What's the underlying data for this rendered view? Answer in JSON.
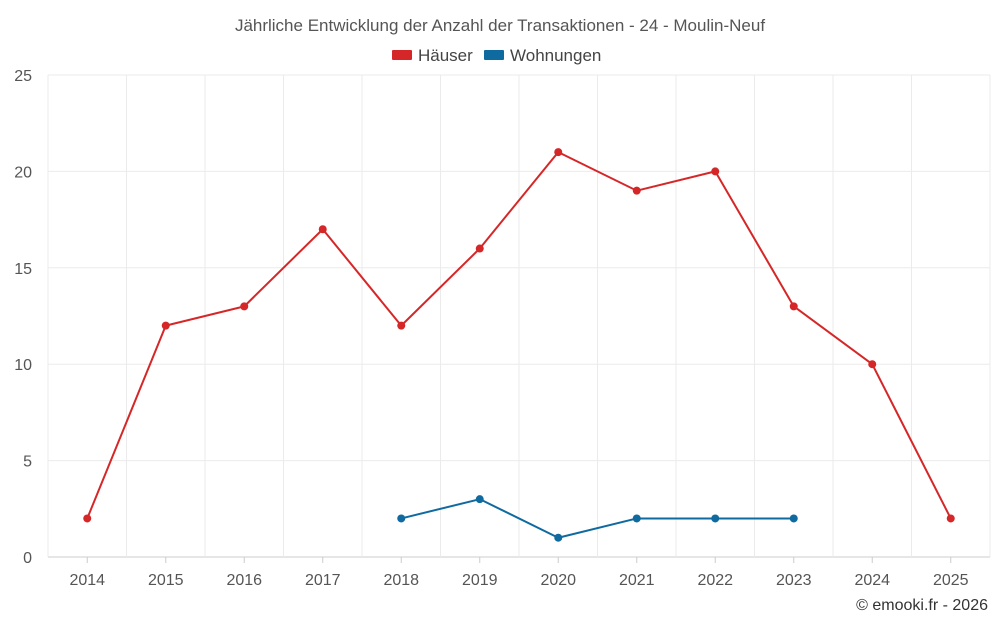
{
  "chart_data": {
    "type": "line",
    "title": "Jährliche Entwicklung der Anzahl der Transaktionen - 24 - Moulin-Neuf",
    "categories": [
      "2014",
      "2015",
      "2016",
      "2017",
      "2018",
      "2019",
      "2020",
      "2021",
      "2022",
      "2023",
      "2024",
      "2025"
    ],
    "ylim": [
      0,
      25
    ],
    "yticks": [
      0,
      5,
      10,
      15,
      20,
      25
    ],
    "grid": true,
    "legend_position": "top-center",
    "series": [
      {
        "name": "Häuser",
        "color": "#d62728",
        "values": [
          2,
          12,
          13,
          17,
          12,
          16,
          21,
          19,
          20,
          13,
          10,
          2
        ]
      },
      {
        "name": "Wohnungen",
        "color": "#0f6aa0",
        "values": [
          null,
          null,
          null,
          null,
          2,
          3,
          1,
          2,
          2,
          2,
          null,
          null
        ]
      }
    ]
  },
  "credit": "© emooki.fr - 2026"
}
